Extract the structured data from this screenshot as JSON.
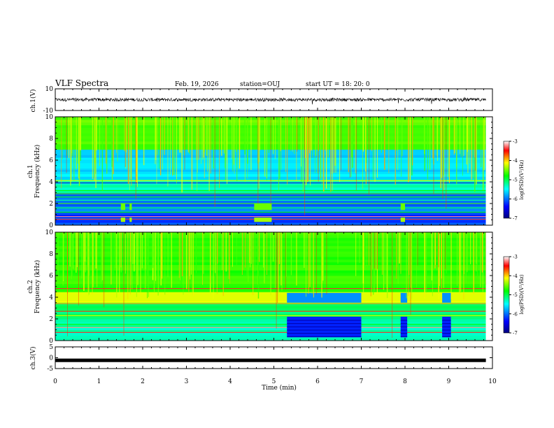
{
  "header": {
    "title": "VLF Spectra",
    "date": "Feb. 19, 2026",
    "station": "station=OUJ",
    "start_ut": "start  UT =   18: 20: 0"
  },
  "chart_data": [
    {
      "type": "line",
      "name": "ch.1 waveform",
      "ylabel": "ch.1(V)",
      "ylim": [
        -10,
        10
      ],
      "yticks": [
        "10",
        "-10"
      ],
      "xlim": [
        0,
        10
      ],
      "mean": 0,
      "amplitude": 1.5,
      "data_end_min": 9.85
    },
    {
      "type": "heatmap",
      "name": "ch.1 spectrogram",
      "ylabel": "ch.1\nFrequency (kHz)",
      "ylim": [
        0,
        10
      ],
      "yticks": [
        "0",
        "2",
        "4",
        "6",
        "8",
        "10"
      ],
      "xlim": [
        0,
        10
      ],
      "data_end_min": 9.85,
      "colorbar": {
        "label": "log(PSD)(V²/Hz)",
        "range": [
          -7,
          -3
        ],
        "ticks": [
          "-3",
          "-4",
          "-5",
          "-6",
          "-7"
        ]
      }
    },
    {
      "type": "heatmap",
      "name": "ch.2 spectrogram",
      "ylabel": "ch.2\nFrequency (kHz)",
      "ylim": [
        0,
        10
      ],
      "yticks": [
        "0",
        "2",
        "4",
        "6",
        "8",
        "10"
      ],
      "xlim": [
        0,
        10
      ],
      "data_end_min": 9.85,
      "quiet_intervals_min": [
        [
          5.3,
          7.0
        ],
        [
          7.9,
          8.05
        ],
        [
          8.85,
          9.05
        ]
      ],
      "colorbar": {
        "label": "log(PSD)(V²/Hz)",
        "range": [
          -7,
          -3
        ],
        "ticks": [
          "-3",
          "-4",
          "-5",
          "-6",
          "-7"
        ]
      }
    },
    {
      "type": "line",
      "name": "ch.3 waveform",
      "ylabel": "ch.3(V)",
      "ylim": [
        -5,
        5
      ],
      "yticks": [
        "5",
        "0",
        "-5"
      ],
      "xlim": [
        0,
        10
      ],
      "mean": -1.2,
      "data_end_min": 9.85
    }
  ],
  "xaxis": {
    "label": "Time (min)",
    "ticks": [
      "0",
      "1",
      "2",
      "3",
      "4",
      "5",
      "6",
      "7",
      "8",
      "9",
      "10"
    ]
  },
  "colors": {
    "ink": "#000000",
    "colormap": [
      "#00007f",
      "#0000ff",
      "#00ffff",
      "#00ff00",
      "#ffff00",
      "#ff0000",
      "#ffffff"
    ]
  }
}
